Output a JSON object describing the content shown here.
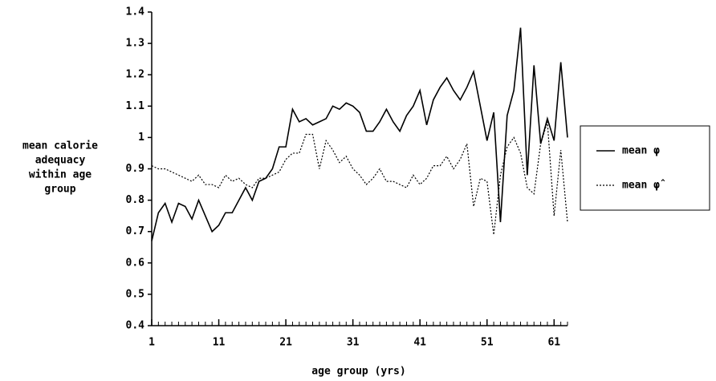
{
  "chart_data": {
    "type": "line",
    "y_label": [
      "mean calorie",
      "adequacy",
      "within age",
      "group"
    ],
    "x_label": "age group (yrs)",
    "x": [
      1,
      2,
      3,
      4,
      5,
      6,
      7,
      8,
      9,
      10,
      11,
      12,
      13,
      14,
      15,
      16,
      17,
      18,
      19,
      20,
      21,
      22,
      23,
      24,
      25,
      26,
      27,
      28,
      29,
      30,
      31,
      32,
      33,
      34,
      35,
      36,
      37,
      38,
      39,
      40,
      41,
      42,
      43,
      44,
      45,
      46,
      47,
      48,
      49,
      50,
      51,
      52,
      53,
      54,
      55,
      56,
      57,
      58,
      59,
      60,
      61,
      62,
      63
    ],
    "xlim": [
      1,
      63
    ],
    "xticks": [
      1,
      11,
      21,
      31,
      41,
      51,
      61
    ],
    "ylim": [
      0.4,
      1.4
    ],
    "yticks": [
      0.4,
      0.5,
      0.6,
      0.7,
      0.8,
      0.9,
      1,
      1.1,
      1.2,
      1.3,
      1.4
    ],
    "series": [
      {
        "name": "mean φ",
        "color": "#000000",
        "dash": "solid",
        "values": [
          0.67,
          0.76,
          0.79,
          0.73,
          0.79,
          0.78,
          0.74,
          0.8,
          0.75,
          0.7,
          0.72,
          0.76,
          0.76,
          0.8,
          0.84,
          0.8,
          0.86,
          0.87,
          0.9,
          0.97,
          0.97,
          1.09,
          1.05,
          1.06,
          1.04,
          1.05,
          1.06,
          1.1,
          1.09,
          1.11,
          1.1,
          1.08,
          1.02,
          1.02,
          1.05,
          1.09,
          1.05,
          1.02,
          1.07,
          1.1,
          1.15,
          1.04,
          1.12,
          1.16,
          1.19,
          1.15,
          1.12,
          1.16,
          1.21,
          1.1,
          0.99,
          1.08,
          0.73,
          1.07,
          1.15,
          1.35,
          0.88,
          1.23,
          0.98,
          1.06,
          0.99,
          1.24,
          1.0
        ]
      },
      {
        "name": "mean φ̂",
        "color": "#000000",
        "dash": "dotted",
        "values": [
          0.91,
          0.9,
          0.9,
          0.89,
          0.88,
          0.87,
          0.86,
          0.88,
          0.85,
          0.85,
          0.84,
          0.88,
          0.86,
          0.87,
          0.85,
          0.84,
          0.87,
          0.87,
          0.88,
          0.89,
          0.93,
          0.95,
          0.95,
          1.01,
          1.01,
          0.9,
          0.99,
          0.96,
          0.92,
          0.94,
          0.9,
          0.88,
          0.85,
          0.87,
          0.9,
          0.86,
          0.86,
          0.85,
          0.84,
          0.88,
          0.85,
          0.87,
          0.91,
          0.91,
          0.94,
          0.9,
          0.93,
          0.98,
          0.78,
          0.87,
          0.86,
          0.69,
          0.88,
          0.97,
          1.0,
          0.95,
          0.84,
          0.82,
          0.98,
          1.05,
          0.75,
          0.96,
          0.73
        ]
      }
    ]
  }
}
